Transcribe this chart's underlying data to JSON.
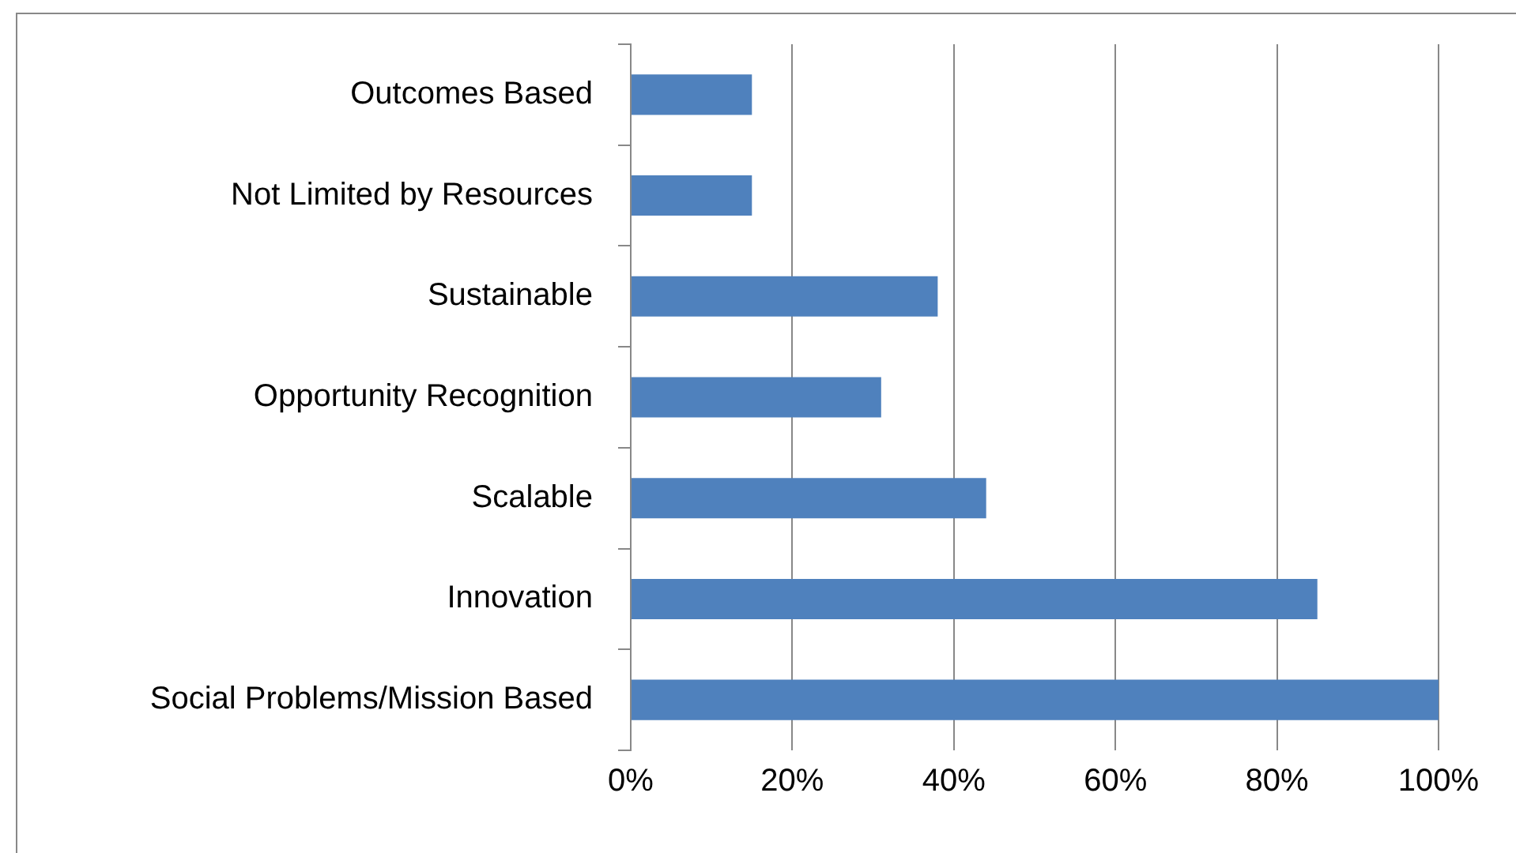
{
  "chart_data": {
    "type": "bar",
    "orientation": "horizontal",
    "categories": [
      "Outcomes Based",
      "Not Limited by Resources",
      "Sustainable",
      "Opportunity Recognition",
      "Scalable",
      "Innovation",
      "Social Problems/Mission Based"
    ],
    "values": [
      15,
      15,
      38,
      31,
      44,
      85,
      100
    ],
    "color": "#4f81bd",
    "xlim": [
      0,
      100
    ],
    "xticks": [
      {
        "value": 0,
        "label": "0%"
      },
      {
        "value": 20,
        "label": "20%"
      },
      {
        "value": 40,
        "label": "40%"
      },
      {
        "value": 60,
        "label": "60%"
      },
      {
        "value": 80,
        "label": "80%"
      },
      {
        "value": 100,
        "label": "100%"
      }
    ],
    "grid": "x",
    "legend": false
  }
}
